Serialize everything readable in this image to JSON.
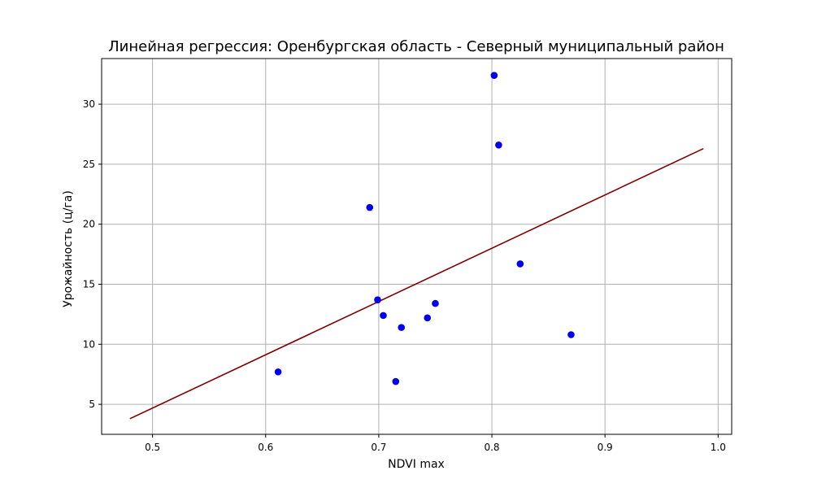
{
  "chart_data": {
    "type": "scatter",
    "title": "Линейная регрессия: Оренбургская область - Северный муниципальный район",
    "xlabel": "NDVI max",
    "ylabel": "Урожайность (ц/га)",
    "xlim": [
      0.455,
      1.012
    ],
    "ylim": [
      2.5,
      33.8
    ],
    "xticks": [
      0.5,
      0.6,
      0.7,
      0.8,
      0.9,
      1.0
    ],
    "xtick_labels": [
      "0.5",
      "0.6",
      "0.7",
      "0.8",
      "0.9",
      "1.0"
    ],
    "yticks": [
      5,
      10,
      15,
      20,
      25,
      30
    ],
    "ytick_labels": [
      "5",
      "10",
      "15",
      "20",
      "25",
      "30"
    ],
    "grid": true,
    "points": [
      {
        "x": 0.611,
        "y": 7.7
      },
      {
        "x": 0.692,
        "y": 21.4
      },
      {
        "x": 0.699,
        "y": 13.7
      },
      {
        "x": 0.704,
        "y": 12.4
      },
      {
        "x": 0.715,
        "y": 6.9
      },
      {
        "x": 0.72,
        "y": 11.4
      },
      {
        "x": 0.743,
        "y": 12.2
      },
      {
        "x": 0.75,
        "y": 13.4
      },
      {
        "x": 0.802,
        "y": 32.4
      },
      {
        "x": 0.806,
        "y": 26.6
      },
      {
        "x": 0.825,
        "y": 16.7
      },
      {
        "x": 0.87,
        "y": 10.8
      }
    ],
    "regression_line": {
      "x": [
        0.48,
        0.987
      ],
      "y": [
        3.8,
        26.3
      ]
    },
    "colors": {
      "points": "#0000ee",
      "line": "#800000",
      "grid": "#b0b0b0",
      "axes": "#000000"
    }
  }
}
